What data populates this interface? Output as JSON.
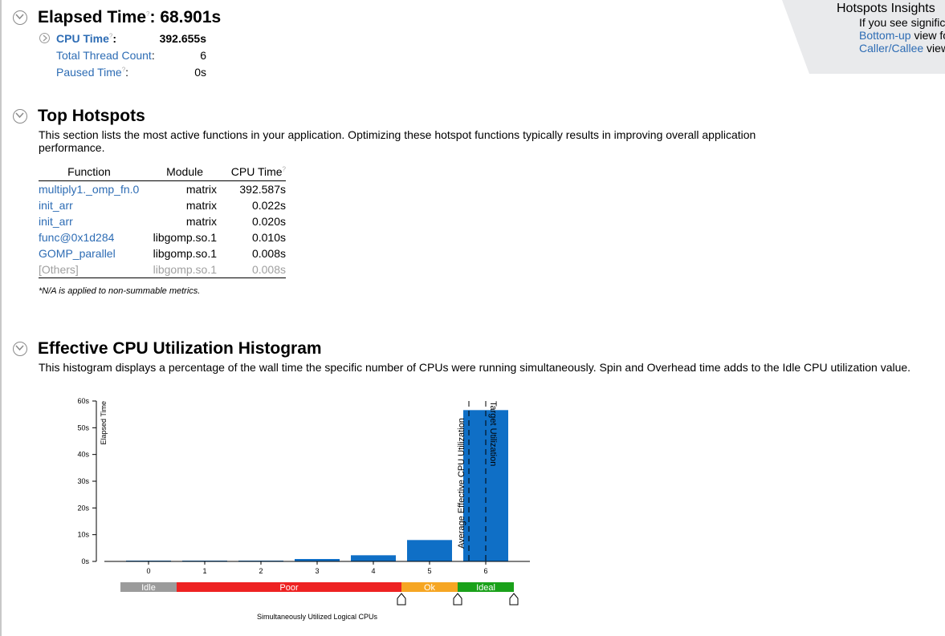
{
  "elapsed": {
    "title": "Elapsed Time",
    "separator": ":",
    "value": "68.901s",
    "help_mark": "?",
    "metrics": [
      {
        "label": "CPU Time",
        "suffix": ":",
        "value": "392.655s",
        "expandable": true,
        "help_mark": "?"
      },
      {
        "label": "Total Thread Count",
        "suffix": ":",
        "value": "6"
      },
      {
        "label": "Paused Time",
        "suffix": ":",
        "value": "0s",
        "help_mark": "?"
      }
    ]
  },
  "insights": {
    "title": "Hotspots Insights",
    "line1": "If you see signific",
    "link1": "Bottom-up",
    "line2_rest": " view fo",
    "link2": "Caller/Callee",
    "line3_rest": " view"
  },
  "hotspots": {
    "title": "Top Hotspots",
    "description": "This section lists the most active functions in your application. Optimizing these hotspot functions typically results in improving overall application performance.",
    "columns": [
      "Function",
      "Module",
      "CPU Time"
    ],
    "rows": [
      {
        "function": "multiply1._omp_fn.0",
        "module": "matrix",
        "cpu_time": "392.587s"
      },
      {
        "function": "init_arr",
        "module": "matrix",
        "cpu_time": "0.022s"
      },
      {
        "function": "init_arr",
        "module": "matrix",
        "cpu_time": "0.020s"
      },
      {
        "function": "func@0x1d284",
        "module": "libgomp.so.1",
        "cpu_time": "0.010s"
      },
      {
        "function": "GOMP_parallel",
        "module": "libgomp.so.1",
        "cpu_time": "0.008s"
      },
      {
        "function": "[Others]",
        "module": "libgomp.so.1",
        "cpu_time": "0.008s",
        "muted": true
      }
    ],
    "footnote": "*N/A is applied to non-summable metrics."
  },
  "histogram": {
    "title": "Effective CPU Utilization Histogram",
    "description": "This histogram displays a percentage of the wall time the specific number of CPUs were running simultaneously. Spin and Overhead time adds to the Idle CPU utilization value.",
    "chart_data": {
      "type": "bar",
      "categories": [
        "0",
        "1",
        "2",
        "3",
        "4",
        "5",
        "6"
      ],
      "values": [
        0.3,
        0.3,
        0.3,
        0.9,
        2.3,
        8.0,
        56.6
      ],
      "ylabel": "Elapsed Time",
      "xlabel": "Simultaneously Utilized Logical CPUs",
      "y_ticks": [
        "0s",
        "10s",
        "20s",
        "30s",
        "40s",
        "50s",
        "60s"
      ],
      "ylim": [
        0,
        60
      ],
      "bar_color": "#0f6fc6",
      "average_line": {
        "label": "Average Effective CPU Utilization",
        "x": 5.7
      },
      "target_line": {
        "label": "Target Utilization",
        "x": 6.0
      },
      "zones": [
        {
          "label": "Idle",
          "from": -0.5,
          "to": 0.5,
          "color": "#9b9b9b"
        },
        {
          "label": "Poor",
          "from": 0.5,
          "to": 4.5,
          "color": "#ee2222"
        },
        {
          "label": "Ok",
          "from": 4.5,
          "to": 5.5,
          "color": "#f6a623"
        },
        {
          "label": "Ideal",
          "from": 5.5,
          "to": 6.5,
          "color": "#1aa11a"
        }
      ],
      "markers": [
        4.5,
        5.5,
        6.5
      ]
    }
  }
}
